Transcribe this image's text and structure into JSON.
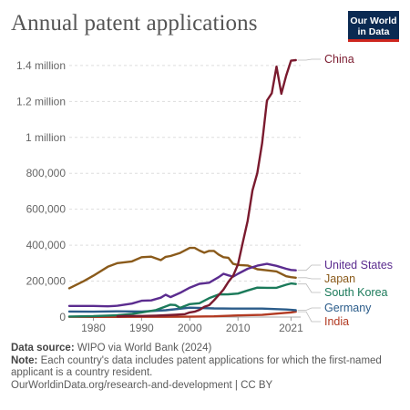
{
  "header": {
    "title": "Annual patent applications"
  },
  "logo": {
    "line1": "Our World",
    "line2": "in Data"
  },
  "chart_data": {
    "type": "line",
    "title": "Annual patent applications",
    "xlim": [
      1975,
      2023
    ],
    "ylim": [
      0,
      1430000
    ],
    "x_ticks": [
      1980,
      1990,
      2000,
      2010,
      2021
    ],
    "x_tick_labels": [
      "1980",
      "1990",
      "2000",
      "2010",
      "2021"
    ],
    "y_ticks": [
      0,
      200000,
      400000,
      600000,
      800000,
      1000000,
      1200000,
      1400000
    ],
    "y_tick_labels": [
      "0",
      "200,000",
      "400,000",
      "600,000",
      "800,000",
      "1 million",
      "1.2 million",
      "1.4 million"
    ],
    "grid": true,
    "legend": "right, direct labels at line ends",
    "series": [
      {
        "name": "China",
        "color": "#7a1a2e",
        "x": [
          1985,
          1987,
          1990,
          1993,
          1995,
          1997,
          1999,
          2000,
          2001,
          2002,
          2003,
          2004,
          2005,
          2006,
          2007,
          2008,
          2009,
          2010,
          2011,
          2012,
          2013,
          2014,
          2015,
          2016,
          2017,
          2018,
          2019,
          2020,
          2021,
          2022
        ],
        "y": [
          4000,
          6000,
          6000,
          8000,
          10000,
          13000,
          16000,
          26000,
          30000,
          40000,
          57000,
          66000,
          93000,
          122000,
          153000,
          195000,
          230000,
          293000,
          416000,
          535000,
          705000,
          801000,
          968000,
          1205000,
          1246000,
          1394000,
          1243000,
          1344000,
          1427000,
          1465000
        ]
      },
      {
        "name": "United States",
        "color": "#5b2c8f",
        "x": [
          1975,
          1978,
          1980,
          1983,
          1985,
          1988,
          1990,
          1992,
          1994,
          1995,
          1996,
          1998,
          2000,
          2002,
          2004,
          2006,
          2007,
          2008,
          2009,
          2010,
          2012,
          2014,
          2016,
          2018,
          2020,
          2021,
          2022
        ],
        "y": [
          62000,
          62000,
          62000,
          60000,
          63000,
          75000,
          91000,
          93000,
          108000,
          124000,
          111000,
          135000,
          164000,
          185000,
          191000,
          222000,
          241000,
          232000,
          225000,
          241000,
          269000,
          286000,
          296000,
          285000,
          269000,
          262000,
          260000
        ]
      },
      {
        "name": "Japan",
        "color": "#8a5a1a",
        "x": [
          1975,
          1978,
          1980,
          1983,
          1985,
          1988,
          1990,
          1992,
          1994,
          1995,
          1996,
          1998,
          2000,
          2001,
          2002,
          2003,
          2004,
          2005,
          2006,
          2007,
          2008,
          2009,
          2010,
          2012,
          2014,
          2016,
          2018,
          2020,
          2021,
          2022
        ],
        "y": [
          160000,
          200000,
          230000,
          280000,
          300000,
          310000,
          333000,
          336000,
          317000,
          335000,
          340000,
          357000,
          385000,
          385000,
          370000,
          358000,
          368000,
          368000,
          348000,
          333000,
          330000,
          296000,
          290000,
          287000,
          266000,
          260000,
          254000,
          227000,
          222000,
          219000
        ]
      },
      {
        "name": "South Korea",
        "color": "#1b7a5a",
        "x": [
          1975,
          1980,
          1985,
          1988,
          1990,
          1993,
          1995,
          1996,
          1997,
          1998,
          2000,
          2002,
          2004,
          2006,
          2008,
          2010,
          2012,
          2014,
          2016,
          2018,
          2020,
          2021,
          2022
        ],
        "y": [
          3000,
          5000,
          10000,
          17000,
          26000,
          39000,
          59000,
          69000,
          67000,
          51000,
          72000,
          77000,
          105000,
          126000,
          127000,
          131000,
          148000,
          164000,
          163000,
          163000,
          180000,
          187000,
          184000
        ]
      },
      {
        "name": "Germany",
        "color": "#2b5c8a",
        "x": [
          1975,
          1980,
          1985,
          1990,
          1995,
          2000,
          2005,
          2010,
          2015,
          2020,
          2021,
          2022
        ],
        "y": [
          31000,
          30000,
          32000,
          31000,
          38000,
          52000,
          48000,
          47000,
          47000,
          42000,
          40000,
          38000
        ]
      },
      {
        "name": "India",
        "color": "#b23a22",
        "x": [
          1975,
          1980,
          1985,
          1990,
          1995,
          2000,
          2005,
          2010,
          2015,
          2020,
          2021,
          2022
        ],
        "y": [
          1500,
          1200,
          1200,
          1300,
          1500,
          2200,
          4000,
          9000,
          12000,
          24000,
          26000,
          30000
        ]
      }
    ]
  },
  "footer": {
    "source_label": "Data source:",
    "source_text": "WIPO via World Bank (2024)",
    "note_label": "Note:",
    "note_text": "Each country's data includes patent applications for which the first-named applicant is a country resident.",
    "url": "OurWorldinData.org/research-and-development",
    "license": "| CC BY"
  }
}
